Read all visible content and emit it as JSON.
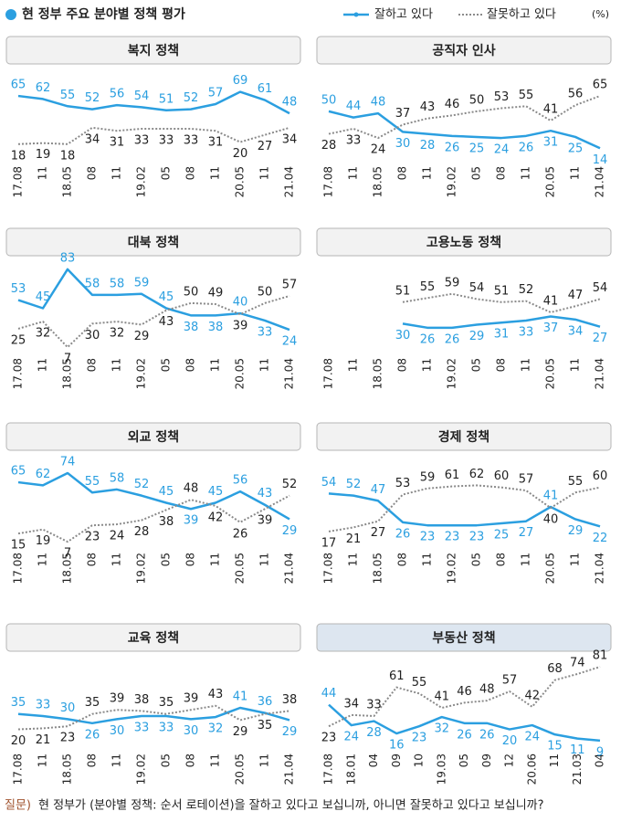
{
  "header": {
    "title": "현 정부 주요 분야별 정책 평가",
    "bullet_color": "#2b9fe0"
  },
  "legend": {
    "items": [
      {
        "name": "잘하고 있다",
        "color": "#2b9fe0",
        "style": "solid"
      },
      {
        "name": "잘못하고 있다",
        "color": "#8a8a8a",
        "style": "dotted"
      }
    ],
    "unit": "(%)"
  },
  "chart_data": [
    {
      "type": "line",
      "title": "복지 정책",
      "box_color": "#f2f2f2",
      "ylim": [
        0,
        90
      ],
      "categories": [
        "17.08",
        "11",
        "18.05",
        "08",
        "11",
        "19.02",
        "05",
        "08",
        "11",
        "20.05",
        "11",
        "21.04"
      ],
      "series": [
        {
          "values": [
            65,
            62,
            55,
            52,
            56,
            54,
            51,
            52,
            57,
            69,
            61,
            48
          ]
        },
        {
          "values": [
            18,
            19,
            18,
            34,
            31,
            33,
            33,
            33,
            31,
            20,
            27,
            34
          ]
        }
      ]
    },
    {
      "type": "line",
      "title": "공직자 인사",
      "box_color": "#f2f2f2",
      "ylim": [
        0,
        90
      ],
      "categories": [
        "17.08",
        "11",
        "18.05",
        "08",
        "11",
        "19.02",
        "05",
        "08",
        "11",
        "20.05",
        "11",
        "21.04"
      ],
      "series": [
        {
          "values": [
            50,
            44,
            48,
            30,
            28,
            26,
            25,
            24,
            26,
            31,
            25,
            14
          ]
        },
        {
          "values": [
            28,
            33,
            24,
            37,
            43,
            46,
            50,
            53,
            55,
            41,
            56,
            65
          ]
        }
      ]
    },
    {
      "type": "line",
      "title": "대북 정책",
      "box_color": "#f2f2f2",
      "ylim": [
        0,
        90
      ],
      "categories": [
        "17.08",
        "11",
        "18.05",
        "08",
        "11",
        "19.02",
        "05",
        "08",
        "11",
        "20.05",
        "11",
        "21.04"
      ],
      "series": [
        {
          "values": [
            53,
            45,
            83,
            58,
            58,
            59,
            45,
            38,
            38,
            40,
            33,
            24
          ]
        },
        {
          "values": [
            25,
            32,
            7,
            30,
            32,
            29,
            43,
            50,
            49,
            39,
            50,
            57
          ]
        }
      ]
    },
    {
      "type": "line",
      "title": "고용노동 정책",
      "box_color": "#f2f2f2",
      "ylim": [
        0,
        90
      ],
      "categories": [
        "17.08",
        "11",
        "18.05",
        "08",
        "11",
        "19.02",
        "05",
        "08",
        "11",
        "20.05",
        "11",
        "21.04"
      ],
      "series": [
        {
          "values": [
            null,
            null,
            null,
            30,
            26,
            26,
            29,
            31,
            33,
            37,
            34,
            27
          ]
        },
        {
          "values": [
            null,
            null,
            null,
            51,
            55,
            59,
            54,
            51,
            52,
            41,
            47,
            54
          ]
        }
      ]
    },
    {
      "type": "line",
      "title": "외교 정책",
      "box_color": "#f2f2f2",
      "ylim": [
        0,
        90
      ],
      "categories": [
        "17.08",
        "11",
        "18.05",
        "08",
        "11",
        "19.02",
        "05",
        "08",
        "11",
        "20.05",
        "11",
        "21.04"
      ],
      "series": [
        {
          "values": [
            65,
            62,
            74,
            55,
            58,
            52,
            45,
            39,
            45,
            56,
            43,
            29
          ]
        },
        {
          "values": [
            15,
            19,
            7,
            23,
            24,
            28,
            38,
            48,
            42,
            26,
            39,
            52
          ]
        }
      ]
    },
    {
      "type": "line",
      "title": "경제 정책",
      "box_color": "#f2f2f2",
      "ylim": [
        0,
        90
      ],
      "categories": [
        "17.08",
        "11",
        "18.05",
        "08",
        "11",
        "19.02",
        "05",
        "08",
        "11",
        "20.05",
        "11",
        "21.04"
      ],
      "series": [
        {
          "values": [
            54,
            52,
            47,
            26,
            23,
            23,
            23,
            25,
            27,
            41,
            29,
            22
          ]
        },
        {
          "values": [
            17,
            21,
            27,
            53,
            59,
            61,
            62,
            60,
            57,
            40,
            55,
            60
          ]
        }
      ]
    },
    {
      "type": "line",
      "title": "교육 정책",
      "box_color": "#f2f2f2",
      "ylim": [
        0,
        90
      ],
      "categories": [
        "17.08",
        "11",
        "18.05",
        "08",
        "11",
        "19.02",
        "05",
        "08",
        "11",
        "20.05",
        "11",
        "21.04"
      ],
      "series": [
        {
          "values": [
            35,
            33,
            30,
            26,
            30,
            33,
            33,
            30,
            32,
            41,
            36,
            29
          ]
        },
        {
          "values": [
            20,
            21,
            23,
            35,
            39,
            38,
            35,
            39,
            43,
            29,
            35,
            38
          ]
        }
      ]
    },
    {
      "type": "line",
      "title": "부동산 정책",
      "box_color": "#dde6f0",
      "ylim": [
        0,
        90
      ],
      "categories": [
        "17.08",
        "18.01",
        "04",
        "09",
        "10",
        "19.03",
        "05",
        "09",
        "12",
        "20.06",
        "11",
        "21.03",
        "04"
      ],
      "series": [
        {
          "values": [
            44,
            24,
            28,
            16,
            23,
            32,
            26,
            26,
            20,
            24,
            15,
            11,
            9
          ]
        },
        {
          "values": [
            23,
            34,
            33,
            61,
            55,
            41,
            46,
            48,
            57,
            42,
            68,
            74,
            81
          ]
        }
      ]
    }
  ],
  "footer": {
    "label": "질문)",
    "label_color": "#a0522d",
    "text": "현 정부가 (분야별 정책: 순서 로테이션)을 잘하고 있다고 보십니까, 아니면 잘못하고 있다고 보십니까?"
  }
}
